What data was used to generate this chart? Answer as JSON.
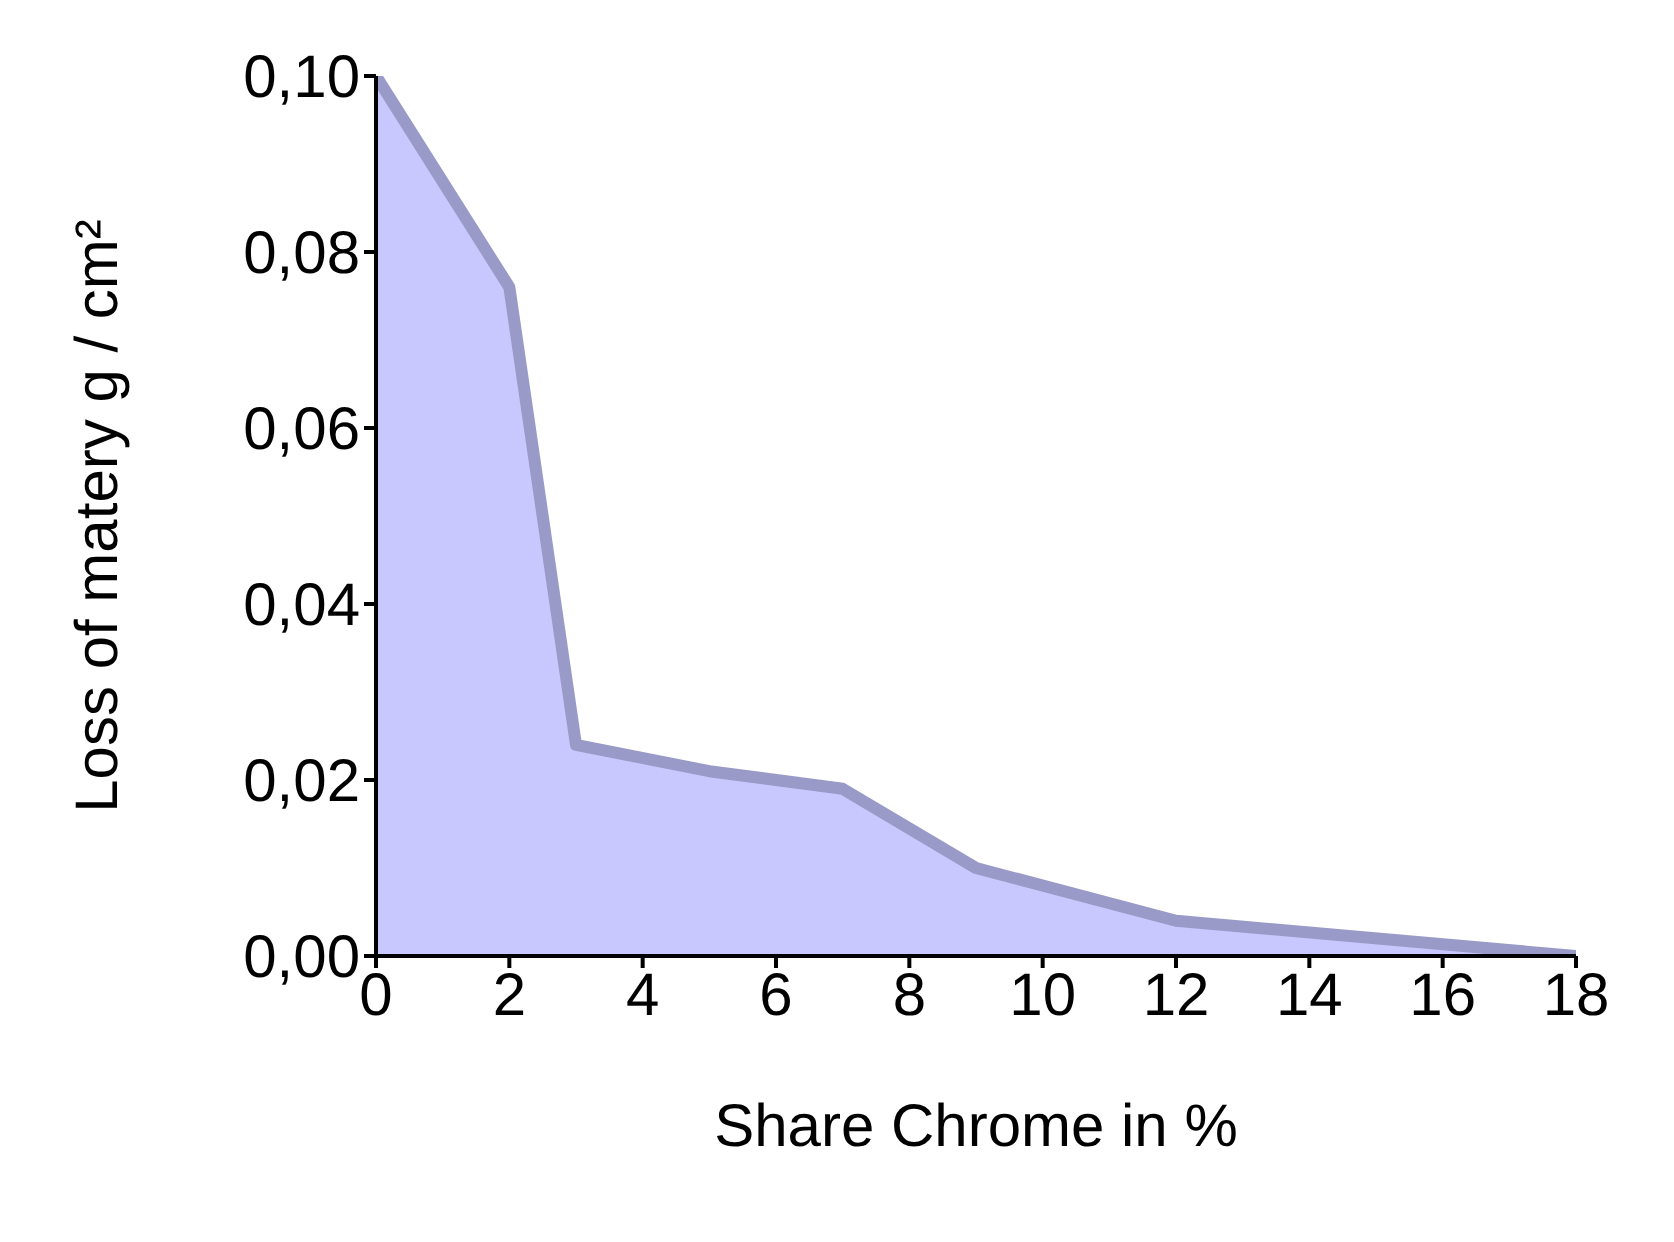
{
  "chart_data": {
    "type": "area",
    "xlabel": "Share Chrome in %",
    "ylabel": "Loss of matery g / cm²",
    "x": [
      0,
      2,
      3,
      5,
      7,
      9,
      12,
      18
    ],
    "series": [
      {
        "color": "#c8c8ff",
        "values": [
          0.1,
          0.076,
          0.024,
          0.021,
          0.019,
          0.01,
          0.004,
          0.0
        ]
      }
    ],
    "xlim": [
      0,
      18
    ],
    "xticks": [
      0,
      2,
      4,
      6,
      8,
      10,
      12,
      14,
      16,
      18
    ],
    "ylim": [
      0,
      0.1
    ],
    "yticks": [
      {
        "value": 0,
        "label": "0,00"
      },
      {
        "value": 0.02,
        "label": "0,02"
      },
      {
        "value": 0.04,
        "label": "0,04"
      },
      {
        "value": 0.06,
        "label": "0,06"
      },
      {
        "value": 0.08,
        "label": "0,08"
      },
      {
        "value": 0.1,
        "label": "0,10"
      }
    ],
    "grid": false,
    "legend": false
  }
}
